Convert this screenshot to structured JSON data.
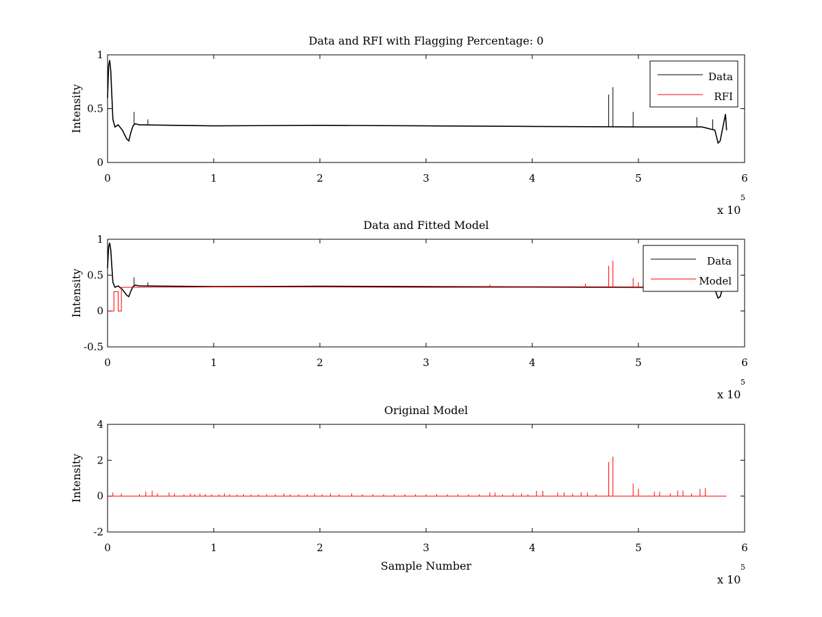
{
  "chart_data": [
    {
      "type": "line",
      "title": "Data and RFI with Flagging Percentage: 0",
      "xlabel": "",
      "ylabel": "Intensity",
      "xlim": [
        0,
        6
      ],
      "ylim": [
        0,
        1
      ],
      "x_ticks": [
        "0",
        "1",
        "2",
        "3",
        "4",
        "5",
        "6"
      ],
      "y_ticks": [
        "0",
        "0.5",
        "1"
      ],
      "x_multiplier_base": "x 10",
      "x_multiplier_exp": "5",
      "legend": {
        "position": "top-right",
        "entries": [
          "Data",
          "RFI"
        ]
      },
      "series": [
        {
          "name": "Data",
          "color": "#000000",
          "x": [
            0,
            0.01,
            0.02,
            0.03,
            0.05,
            0.07,
            0.1,
            0.14,
            0.18,
            0.2,
            0.22,
            0.24,
            0.26,
            0.3,
            1,
            2,
            3,
            4,
            5,
            5.6,
            5.72,
            5.75,
            5.77,
            5.8,
            5.82,
            5.83
          ],
          "values": [
            0.6,
            0.9,
            0.95,
            0.85,
            0.4,
            0.33,
            0.35,
            0.3,
            0.22,
            0.2,
            0.28,
            0.34,
            0.36,
            0.35,
            0.34,
            0.345,
            0.34,
            0.335,
            0.33,
            0.33,
            0.3,
            0.18,
            0.2,
            0.35,
            0.45,
            0.3
          ],
          "spikes": [
            [
              0.25,
              0.47
            ],
            [
              0.38,
              0.4
            ],
            [
              4.72,
              0.63
            ],
            [
              4.76,
              0.7
            ],
            [
              4.95,
              0.47
            ],
            [
              5.55,
              0.42
            ],
            [
              5.7,
              0.4
            ]
          ]
        },
        {
          "name": "RFI",
          "color": "#ff0000",
          "x": [],
          "values": []
        }
      ]
    },
    {
      "type": "line",
      "title": "Data and Fitted Model",
      "xlabel": "",
      "ylabel": "Intensity",
      "xlim": [
        0,
        6
      ],
      "ylim": [
        -0.5,
        1
      ],
      "x_ticks": [
        "0",
        "1",
        "2",
        "3",
        "4",
        "5",
        "6"
      ],
      "y_ticks": [
        "-0.5",
        "0",
        "0.5",
        "1"
      ],
      "x_multiplier_base": "x 10",
      "x_multiplier_exp": "5",
      "legend": {
        "position": "top-right",
        "entries": [
          "Data",
          "Model"
        ]
      },
      "series": [
        {
          "name": "Data",
          "color": "#000000",
          "x": [
            0,
            0.01,
            0.02,
            0.03,
            0.05,
            0.07,
            0.1,
            0.14,
            0.18,
            0.2,
            0.22,
            0.24,
            0.26,
            0.3,
            1,
            2,
            3,
            4,
            5,
            5.6,
            5.72,
            5.75,
            5.77,
            5.8,
            5.82,
            5.83
          ],
          "values": [
            0.6,
            0.9,
            0.95,
            0.85,
            0.4,
            0.33,
            0.35,
            0.3,
            0.22,
            0.2,
            0.28,
            0.34,
            0.36,
            0.35,
            0.34,
            0.345,
            0.34,
            0.335,
            0.33,
            0.33,
            0.3,
            0.18,
            0.2,
            0.35,
            0.45,
            0.3
          ],
          "spikes": [
            [
              0.25,
              0.47
            ],
            [
              0.38,
              0.4
            ]
          ]
        },
        {
          "name": "Model",
          "color": "#ff0000",
          "x": [
            0,
            0.06,
            0.06,
            0.1,
            0.1,
            0.13,
            0.13,
            1,
            2,
            3,
            4,
            5,
            5.83
          ],
          "values": [
            0,
            0,
            0.27,
            0.27,
            0,
            0,
            0.33,
            0.335,
            0.335,
            0.33,
            0.33,
            0.325,
            0.33
          ],
          "spikes": [
            [
              4.72,
              0.63
            ],
            [
              4.76,
              0.7
            ],
            [
              4.95,
              0.46
            ],
            [
              5.0,
              0.4
            ],
            [
              4.5,
              0.38
            ],
            [
              3.6,
              0.37
            ]
          ]
        }
      ]
    },
    {
      "type": "line",
      "title": "Original Model",
      "xlabel": "Sample Number",
      "ylabel": "Intensity",
      "xlim": [
        0,
        6
      ],
      "ylim": [
        -2,
        4
      ],
      "x_ticks": [
        "0",
        "1",
        "2",
        "3",
        "4",
        "5",
        "6"
      ],
      "y_ticks": [
        "-2",
        "0",
        "2",
        "4"
      ],
      "x_multiplier_base": "x 10",
      "x_multiplier_exp": "5",
      "series": [
        {
          "name": "Model",
          "color": "#ff0000",
          "x": [
            0,
            5.83
          ],
          "values": [
            0,
            0
          ],
          "spikes": [
            [
              0.05,
              0.2
            ],
            [
              0.13,
              0.15
            ],
            [
              0.3,
              0.1
            ],
            [
              0.36,
              0.25
            ],
            [
              0.42,
              0.3
            ],
            [
              0.47,
              0.15
            ],
            [
              0.58,
              0.2
            ],
            [
              0.63,
              0.15
            ],
            [
              0.72,
              0.1
            ],
            [
              0.78,
              0.15
            ],
            [
              0.82,
              0.1
            ],
            [
              0.87,
              0.15
            ],
            [
              0.92,
              0.1
            ],
            [
              0.98,
              0.1
            ],
            [
              1.05,
              0.1
            ],
            [
              1.1,
              0.15
            ],
            [
              1.15,
              0.1
            ],
            [
              1.22,
              0.1
            ],
            [
              1.28,
              0.1
            ],
            [
              1.35,
              0.1
            ],
            [
              1.42,
              0.1
            ],
            [
              1.5,
              0.1
            ],
            [
              1.58,
              0.1
            ],
            [
              1.66,
              0.15
            ],
            [
              1.72,
              0.1
            ],
            [
              1.8,
              0.1
            ],
            [
              1.88,
              0.1
            ],
            [
              1.95,
              0.15
            ],
            [
              2.02,
              0.1
            ],
            [
              2.1,
              0.15
            ],
            [
              2.18,
              0.1
            ],
            [
              2.3,
              0.15
            ],
            [
              2.4,
              0.1
            ],
            [
              2.5,
              0.1
            ],
            [
              2.6,
              0.1
            ],
            [
              2.7,
              0.1
            ],
            [
              2.8,
              0.1
            ],
            [
              2.9,
              0.1
            ],
            [
              3.0,
              0.1
            ],
            [
              3.1,
              0.1
            ],
            [
              3.2,
              0.1
            ],
            [
              3.3,
              0.1
            ],
            [
              3.4,
              0.1
            ],
            [
              3.5,
              0.1
            ],
            [
              3.6,
              0.2
            ],
            [
              3.65,
              0.2
            ],
            [
              3.72,
              0.1
            ],
            [
              3.82,
              0.15
            ],
            [
              3.9,
              0.15
            ],
            [
              3.96,
              0.1
            ],
            [
              4.04,
              0.3
            ],
            [
              4.1,
              0.3
            ],
            [
              4.24,
              0.2
            ],
            [
              4.3,
              0.2
            ],
            [
              4.38,
              0.15
            ],
            [
              4.46,
              0.2
            ],
            [
              4.52,
              0.2
            ],
            [
              4.6,
              0.1
            ],
            [
              4.72,
              1.9
            ],
            [
              4.76,
              2.2
            ],
            [
              4.95,
              0.7
            ],
            [
              5.0,
              0.4
            ],
            [
              5.15,
              0.25
            ],
            [
              5.2,
              0.25
            ],
            [
              5.3,
              0.15
            ],
            [
              5.37,
              0.3
            ],
            [
              5.42,
              0.3
            ],
            [
              5.5,
              0.15
            ],
            [
              5.58,
              0.4
            ],
            [
              5.63,
              0.45
            ]
          ]
        }
      ]
    }
  ]
}
